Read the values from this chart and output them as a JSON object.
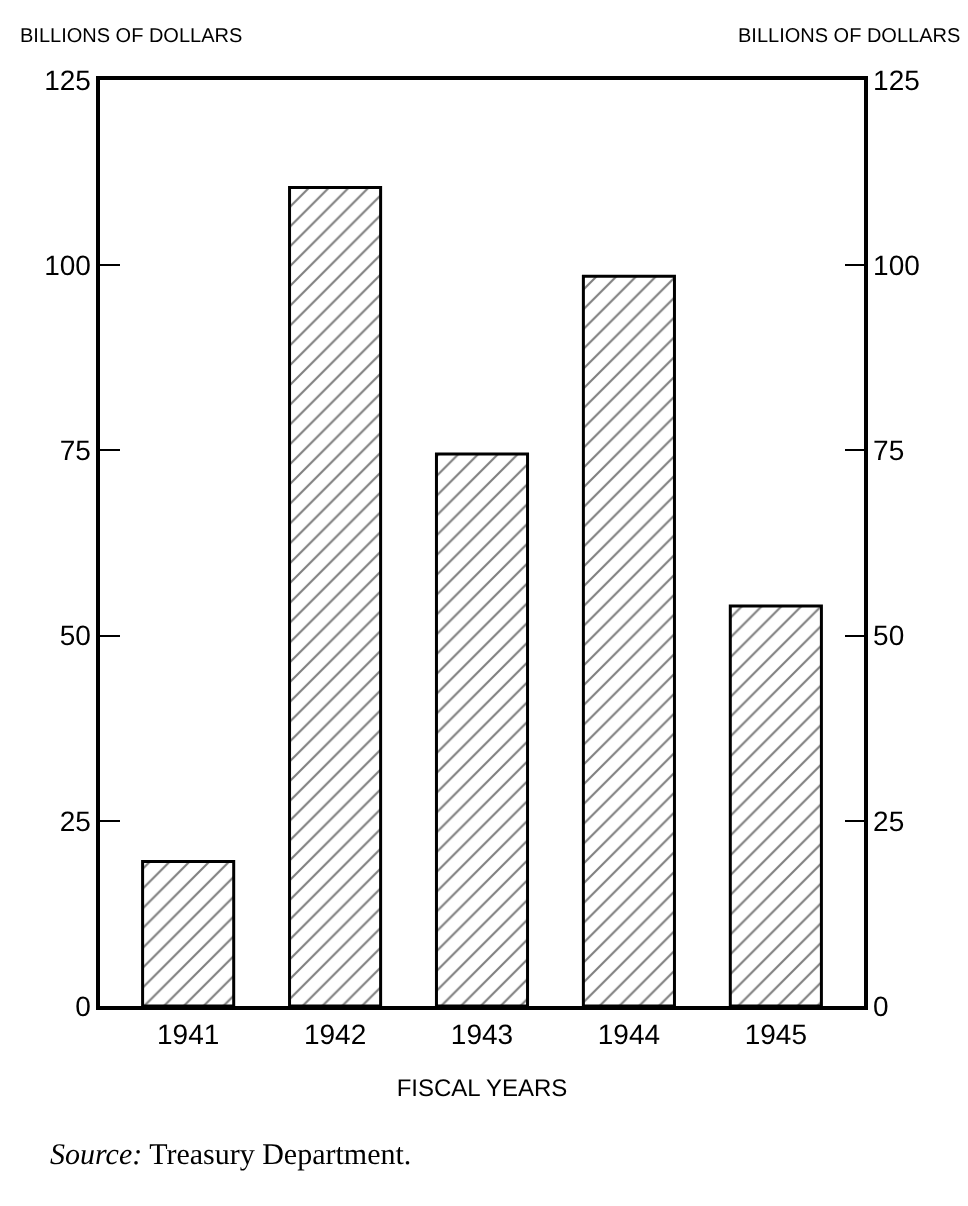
{
  "chart_data": {
    "type": "bar",
    "ylabel": "BILLIONS OF DOLLARS",
    "y2label": "BILLIONS OF DOLLARS",
    "xlabel": "FISCAL YEARS",
    "categories": [
      "1941",
      "1942",
      "1943",
      "1944",
      "1945"
    ],
    "values": [
      19.5,
      110.5,
      74.5,
      98.5,
      54
    ],
    "color": "#000000",
    "ylim": [
      0,
      125
    ],
    "yticks": [
      0,
      25,
      50,
      75,
      100,
      125
    ],
    "y2lim": [
      0,
      125
    ],
    "y2ticks": [
      0,
      25,
      50,
      75,
      100,
      125
    ],
    "annotations": [
      "Source: Treasury Department."
    ]
  }
}
